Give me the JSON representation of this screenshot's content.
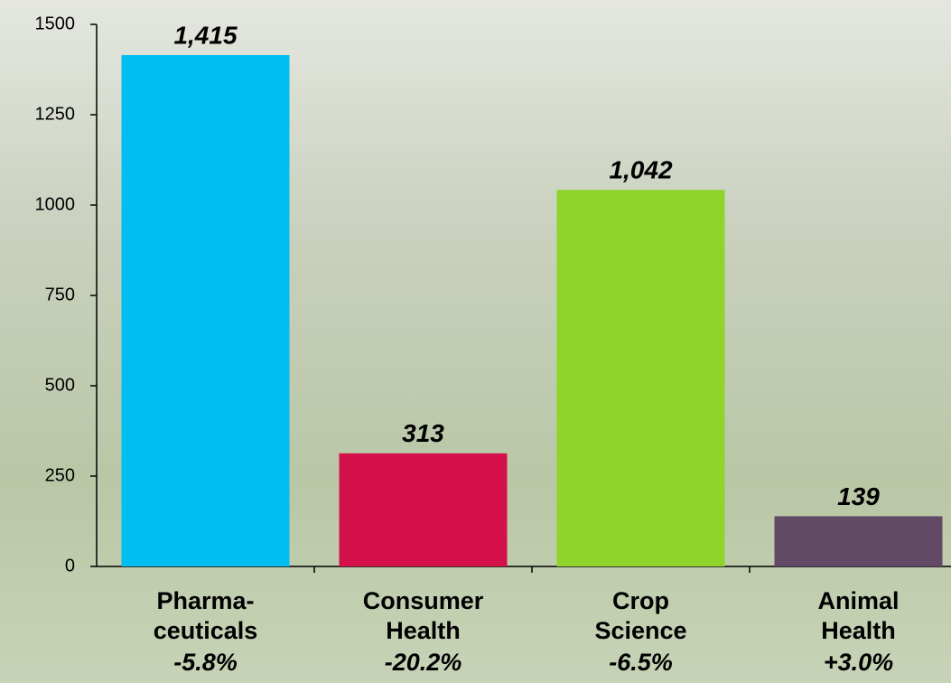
{
  "chart_data": {
    "type": "bar",
    "categories": [
      [
        "Pharma-",
        "ceuticals"
      ],
      [
        "Consumer",
        "Health"
      ],
      [
        "Crop",
        "Science"
      ],
      [
        "Animal",
        "Health"
      ]
    ],
    "changes": [
      "-5.8%",
      "-20.2%",
      "-6.5%",
      "+3.0%"
    ],
    "values": [
      1415,
      313,
      1042,
      139
    ],
    "value_labels": [
      "1,415",
      "313",
      "1,042",
      "139"
    ],
    "colors": [
      "#00bdf2",
      "#d4104a",
      "#8ed42a",
      "#624966"
    ],
    "ylim": [
      0,
      1500
    ],
    "yticks": [
      0,
      250,
      500,
      750,
      1000,
      1250,
      1500
    ],
    "grid": false
  }
}
